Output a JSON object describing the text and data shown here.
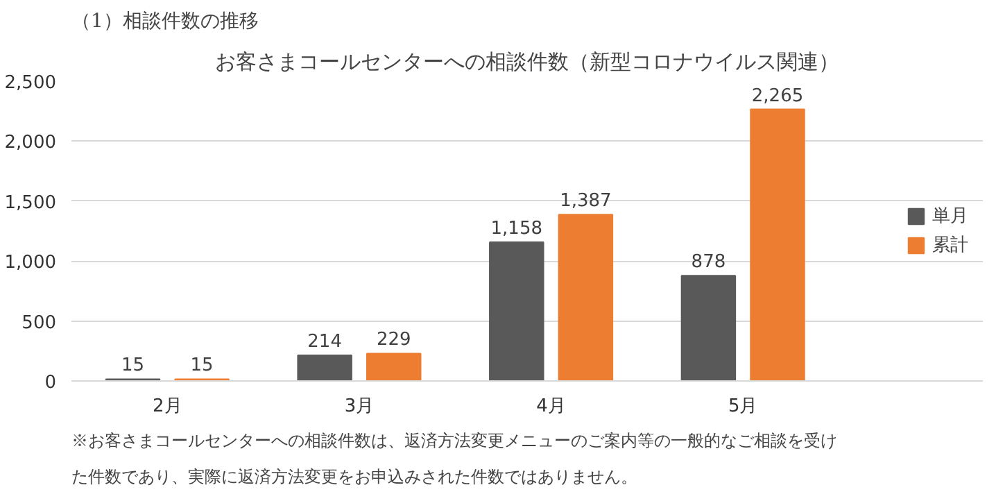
{
  "chart_data": {
    "type": "bar",
    "title": "お客さまコールセンターへの相談件数（新型コロナウイルス関連）",
    "categories": [
      "2月",
      "3月",
      "4月",
      "5月"
    ],
    "series": [
      {
        "name": "単月",
        "color": "#595959",
        "values": [
          15,
          214,
          1158,
          878
        ],
        "value_labels": [
          "15",
          "214",
          "1,158",
          "878"
        ]
      },
      {
        "name": "累計",
        "color": "#ed7d31",
        "values": [
          15,
          229,
          1387,
          2265
        ],
        "value_labels": [
          "15",
          "229",
          "1,387",
          "2,265"
        ]
      }
    ],
    "ylim": [
      0,
      2500
    ],
    "yticks": [
      0,
      {
        "value": 500,
        "label": "500"
      },
      {
        "value": 1000,
        "label": "1,000"
      },
      {
        "value": 1500,
        "label": "1,500"
      },
      {
        "value": 2000,
        "label": "2,000"
      },
      {
        "value": 2500,
        "label": "2,500"
      }
    ],
    "grid": "y",
    "legend": "right",
    "annotations": [
      "（1）相談件数の推移",
      "※お客さまコールセンターへの相談件数は、返済方法変更メニューのご案内等の一般的なご相談を受けた件数であり、実際に返済方法変更をお申込みされた件数ではありません。"
    ]
  }
}
